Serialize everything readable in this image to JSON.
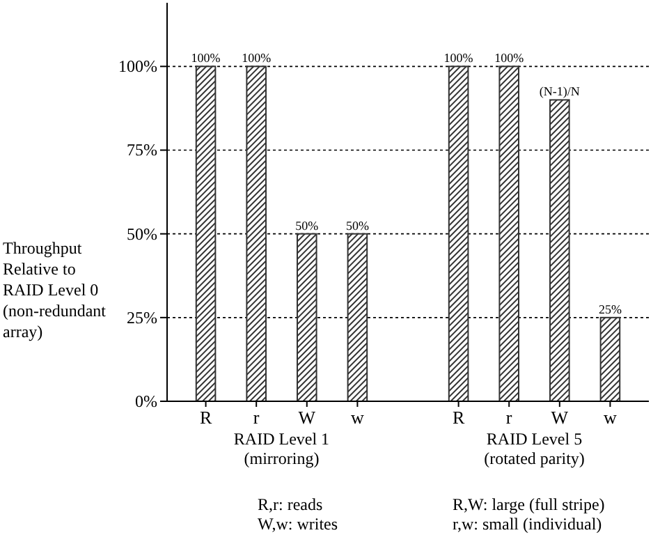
{
  "chart_data": {
    "type": "bar",
    "ylabel": "Throughput\nRelative to\nRAID Level 0\n(non-redundant\narray)",
    "categories": [
      "R",
      "r",
      "W",
      "w",
      null,
      "R",
      "r",
      "W",
      "w"
    ],
    "values": [
      100,
      100,
      50,
      50,
      null,
      100,
      100,
      90,
      25
    ],
    "value_labels": [
      "100%",
      "100%",
      "50%",
      "50%",
      null,
      "100%",
      "100%",
      "(N-1)/N",
      "25%"
    ],
    "color": "#333333",
    "ylim": [
      0,
      119
    ],
    "yticks": [
      {
        "value": 0,
        "label": "0%"
      },
      {
        "value": 25,
        "label": "25%"
      },
      {
        "value": 50,
        "label": "50%"
      },
      {
        "value": 75,
        "label": "75%"
      },
      {
        "value": 100,
        "label": "100%"
      }
    ],
    "grid": "y",
    "annotations": [
      "RAID Level 1\n(mirroring)",
      "RAID Level 5\n(rotated parity)",
      "R,r: reads\nW,w: writes",
      "R,W: large (full stripe)\nr,w: small (individual)"
    ]
  }
}
